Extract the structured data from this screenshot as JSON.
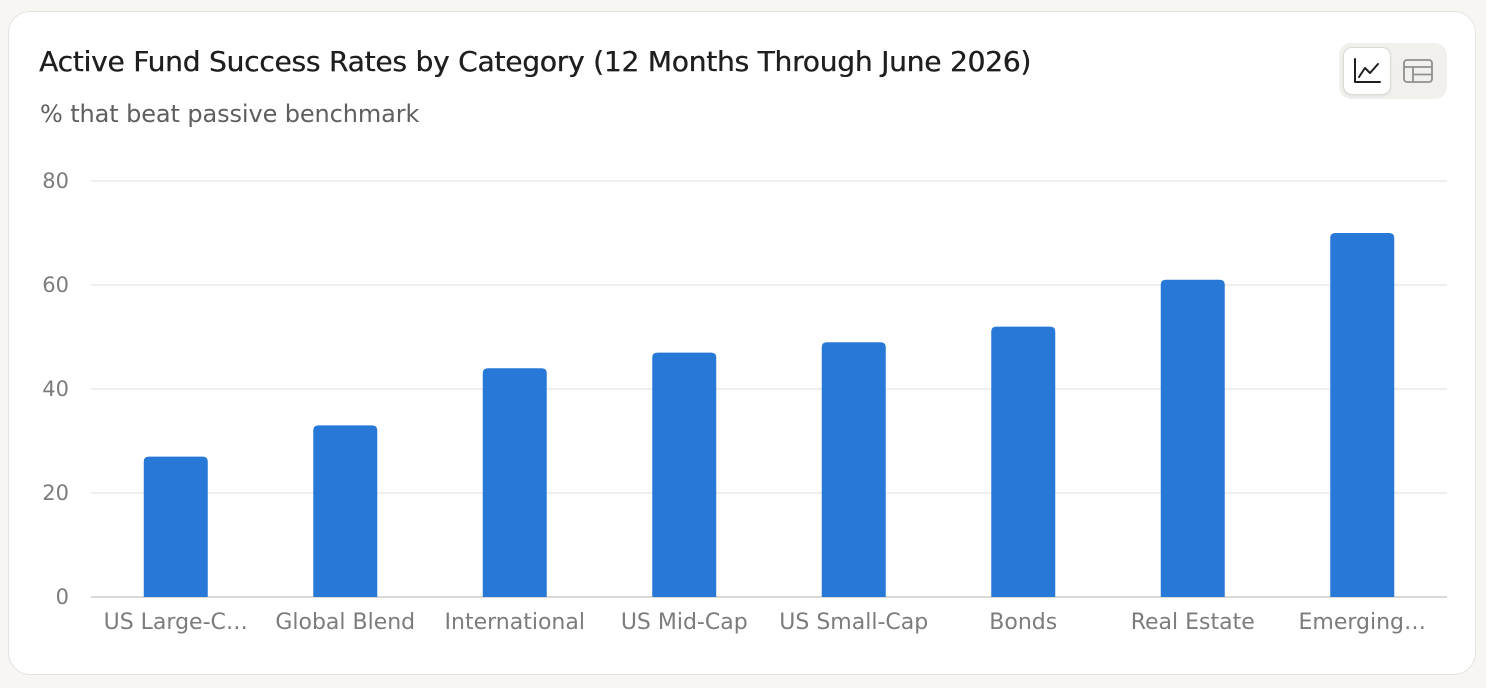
{
  "card": {
    "title": "Active Fund Success Rates by Category (12 Months Through June 2026)",
    "subtitle": "% that beat passive benchmark"
  },
  "view_toggle": {
    "active": "chart",
    "icons": [
      "line-chart-icon",
      "table-icon"
    ]
  },
  "colors": {
    "bar": "#2878d8",
    "grid": "#e6e4e0",
    "axis_line": "#cfcdc8",
    "tick_label": "#7c7c7c"
  },
  "chart_data": {
    "type": "bar",
    "title": "Active Fund Success Rates by Category (12 Months Through June 2026)",
    "subtitle": "% that beat passive benchmark",
    "categories": [
      "US Large-Cap",
      "Global Blend",
      "International",
      "US Mid-Cap",
      "US Small-Cap",
      "Bonds",
      "Real Estate",
      "Emerging Markets"
    ],
    "category_display": [
      "US Large-C…",
      "Global Blend",
      "International",
      "US Mid-Cap",
      "US Small-Cap",
      "Bonds",
      "Real Estate",
      "Emerging…"
    ],
    "values": [
      27,
      33,
      44,
      47,
      49,
      52,
      61,
      70
    ],
    "ylim": [
      0,
      80
    ],
    "yticks": [
      0,
      20,
      40,
      60,
      80
    ],
    "xlabel": "",
    "ylabel": "",
    "grid": true,
    "legend": "none"
  }
}
